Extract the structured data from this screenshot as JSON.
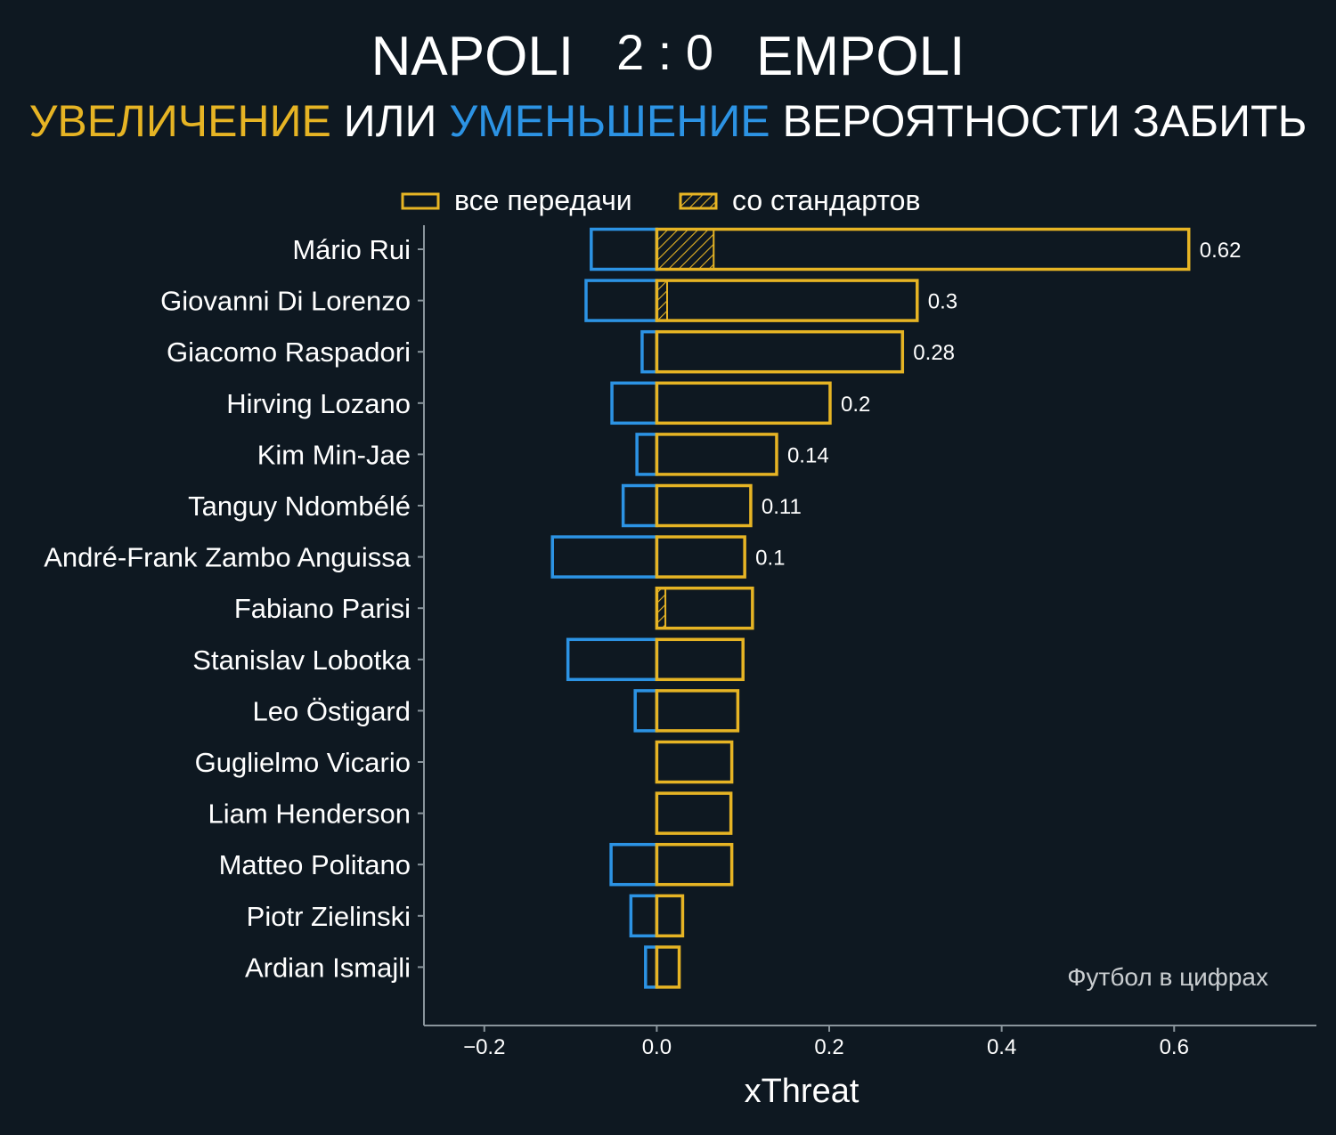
{
  "header": {
    "home_team": "NAPOLI",
    "score": "2 : 0",
    "away_team": "EMPOLI",
    "subtitle_increase": "УВЕЛИЧЕНИЕ",
    "subtitle_or": "ИЛИ",
    "subtitle_decrease": "УМЕНЬШЕНИЕ",
    "subtitle_rest": "ВЕРОЯТНОСТИ ЗАБИТЬ"
  },
  "colors": {
    "background": "#0e1821",
    "increase": "#e6b424",
    "decrease": "#2c93e4",
    "text": "#ffffff",
    "axis": "#8a959c",
    "watermark": "#c9cdd0"
  },
  "watermark": "Футбол в цифрах",
  "chart_data": {
    "type": "bar",
    "orientation": "horizontal",
    "xlabel": "xThreat",
    "ylabel": "",
    "xlim": [
      -0.27,
      0.765
    ],
    "xticks": [
      -0.2,
      0.0,
      0.2,
      0.4,
      0.6
    ],
    "xtick_labels": [
      "−0.2",
      "0.0",
      "0.2",
      "0.4",
      "0.6"
    ],
    "legend": {
      "position": "top",
      "entries": [
        "все передачи",
        "со стандартов"
      ]
    },
    "categories": [
      "Mário Rui",
      "Giovanni Di Lorenzo",
      "Giacomo Raspadori",
      "Hirving Lozano",
      "Kim Min-Jae",
      "Tanguy Ndombélé",
      "André-Frank Zambo Anguissa",
      "Fabiano Parisi",
      "Stanislav Lobotka",
      "Leo Östigard",
      "Guglielmo Vicario",
      "Liam Henderson",
      "Matteo Politano",
      "Piotr Zielinski",
      "Ardian Ismajli"
    ],
    "series": [
      {
        "name": "все передачи (увеличение)",
        "values": [
          0.617,
          0.302,
          0.285,
          0.201,
          0.139,
          0.109,
          0.102,
          0.111,
          0.1,
          0.094,
          0.087,
          0.086,
          0.087,
          0.03,
          0.026
        ]
      },
      {
        "name": "все передачи (уменьшение)",
        "values": [
          -0.076,
          -0.082,
          -0.017,
          -0.052,
          -0.023,
          -0.039,
          -0.121,
          0.0,
          -0.103,
          -0.025,
          0.0,
          0.0,
          -0.053,
          -0.03,
          -0.013
        ]
      },
      {
        "name": "со стандартов",
        "values": [
          0.066,
          0.012,
          0.0,
          0.0,
          0.0,
          0.0,
          0.0,
          0.01,
          0.0,
          0.0,
          0.0,
          0.0,
          0.0,
          0.0,
          0.0
        ]
      }
    ],
    "data_labels": [
      "0.62",
      "0.3",
      "0.28",
      "0.2",
      "0.14",
      "0.11",
      "0.1",
      "",
      "",
      "",
      "",
      "",
      "",
      "",
      ""
    ]
  }
}
